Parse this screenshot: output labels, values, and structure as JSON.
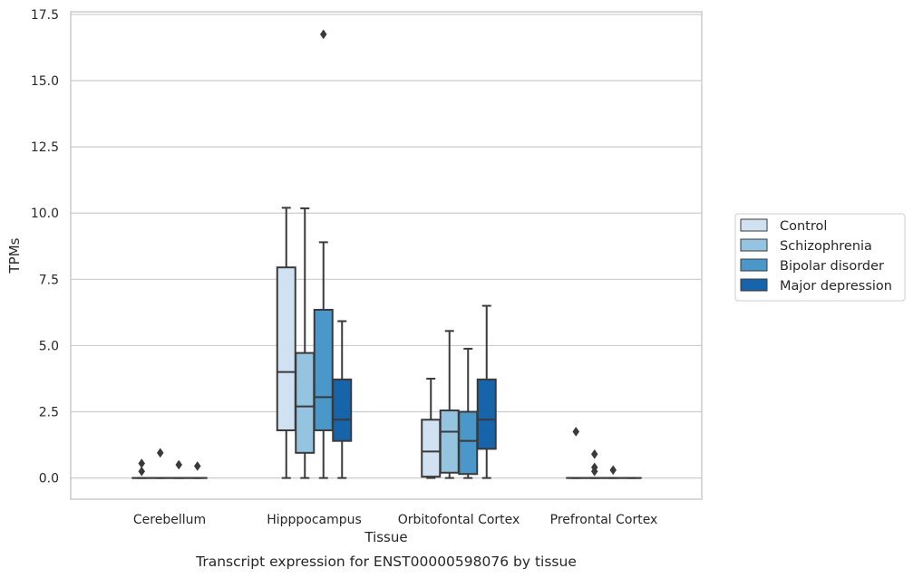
{
  "chart_data": {
    "type": "box",
    "title": "Transcript expression for ENST00000598076 by tissue",
    "xlabel": "Tissue",
    "ylabel": "TPMs",
    "ylim": [
      -0.8,
      17.6
    ],
    "yticks": [
      0.0,
      2.5,
      5.0,
      7.5,
      10.0,
      12.5,
      15.0,
      17.5
    ],
    "ytick_labels": [
      "0.0",
      "2.5",
      "5.0",
      "7.5",
      "10.0",
      "12.5",
      "15.0",
      "17.5"
    ],
    "grid": "horizontal",
    "legend_position": "right",
    "categories": [
      "Cerebellum",
      "Hipppocampus",
      "Orbitofontal Cortex",
      "Prefrontal Cortex"
    ],
    "series": [
      {
        "name": "Control",
        "color": "#d0e1f2",
        "boxes": [
          {
            "whislo": 0,
            "q1": 0,
            "med": 0,
            "q3": 0,
            "whishi": 0,
            "fliers": [
              0.55,
              0.25
            ]
          },
          {
            "whislo": 0,
            "q1": 1.8,
            "med": 4.0,
            "q3": 7.95,
            "whishi": 10.2,
            "fliers": []
          },
          {
            "whislo": 0,
            "q1": 0.05,
            "med": 1.0,
            "q3": 2.2,
            "whishi": 3.75,
            "fliers": []
          },
          {
            "whislo": 0,
            "q1": 0,
            "med": 0,
            "q3": 0,
            "whishi": 0,
            "fliers": [
              1.75
            ]
          }
        ]
      },
      {
        "name": "Schizophrenia",
        "color": "#94c4df",
        "boxes": [
          {
            "whislo": 0,
            "q1": 0,
            "med": 0,
            "q3": 0,
            "whishi": 0,
            "fliers": [
              0.95
            ]
          },
          {
            "whislo": 0,
            "q1": 0.95,
            "med": 2.7,
            "q3": 4.72,
            "whishi": 10.18,
            "fliers": []
          },
          {
            "whislo": 0,
            "q1": 0.2,
            "med": 1.75,
            "q3": 2.55,
            "whishi": 5.55,
            "fliers": []
          },
          {
            "whislo": 0,
            "q1": 0,
            "med": 0,
            "q3": 0,
            "whishi": 0,
            "fliers": [
              0.9,
              0.4,
              0.25
            ]
          }
        ]
      },
      {
        "name": "Bipolar disorder",
        "color": "#4a98c9",
        "boxes": [
          {
            "whislo": 0,
            "q1": 0,
            "med": 0,
            "q3": 0,
            "whishi": 0,
            "fliers": [
              0.5
            ]
          },
          {
            "whislo": 0,
            "q1": 1.8,
            "med": 3.05,
            "q3": 6.35,
            "whishi": 8.9,
            "fliers": [
              16.75
            ]
          },
          {
            "whislo": 0,
            "q1": 0.15,
            "med": 1.4,
            "q3": 2.5,
            "whishi": 4.88,
            "fliers": []
          },
          {
            "whislo": 0,
            "q1": 0,
            "med": 0,
            "q3": 0,
            "whishi": 0,
            "fliers": [
              0.3
            ]
          }
        ]
      },
      {
        "name": "Major depression",
        "color": "#1764ab",
        "boxes": [
          {
            "whislo": 0,
            "q1": 0,
            "med": 0,
            "q3": 0,
            "whishi": 0,
            "fliers": [
              0.45
            ]
          },
          {
            "whislo": 0,
            "q1": 1.4,
            "med": 2.2,
            "q3": 3.72,
            "whishi": 5.92,
            "fliers": []
          },
          {
            "whislo": 0,
            "q1": 1.1,
            "med": 2.2,
            "q3": 3.72,
            "whishi": 6.5,
            "fliers": []
          },
          {
            "whislo": 0,
            "q1": 0,
            "med": 0,
            "q3": 0,
            "whishi": 0,
            "fliers": []
          }
        ]
      }
    ]
  }
}
